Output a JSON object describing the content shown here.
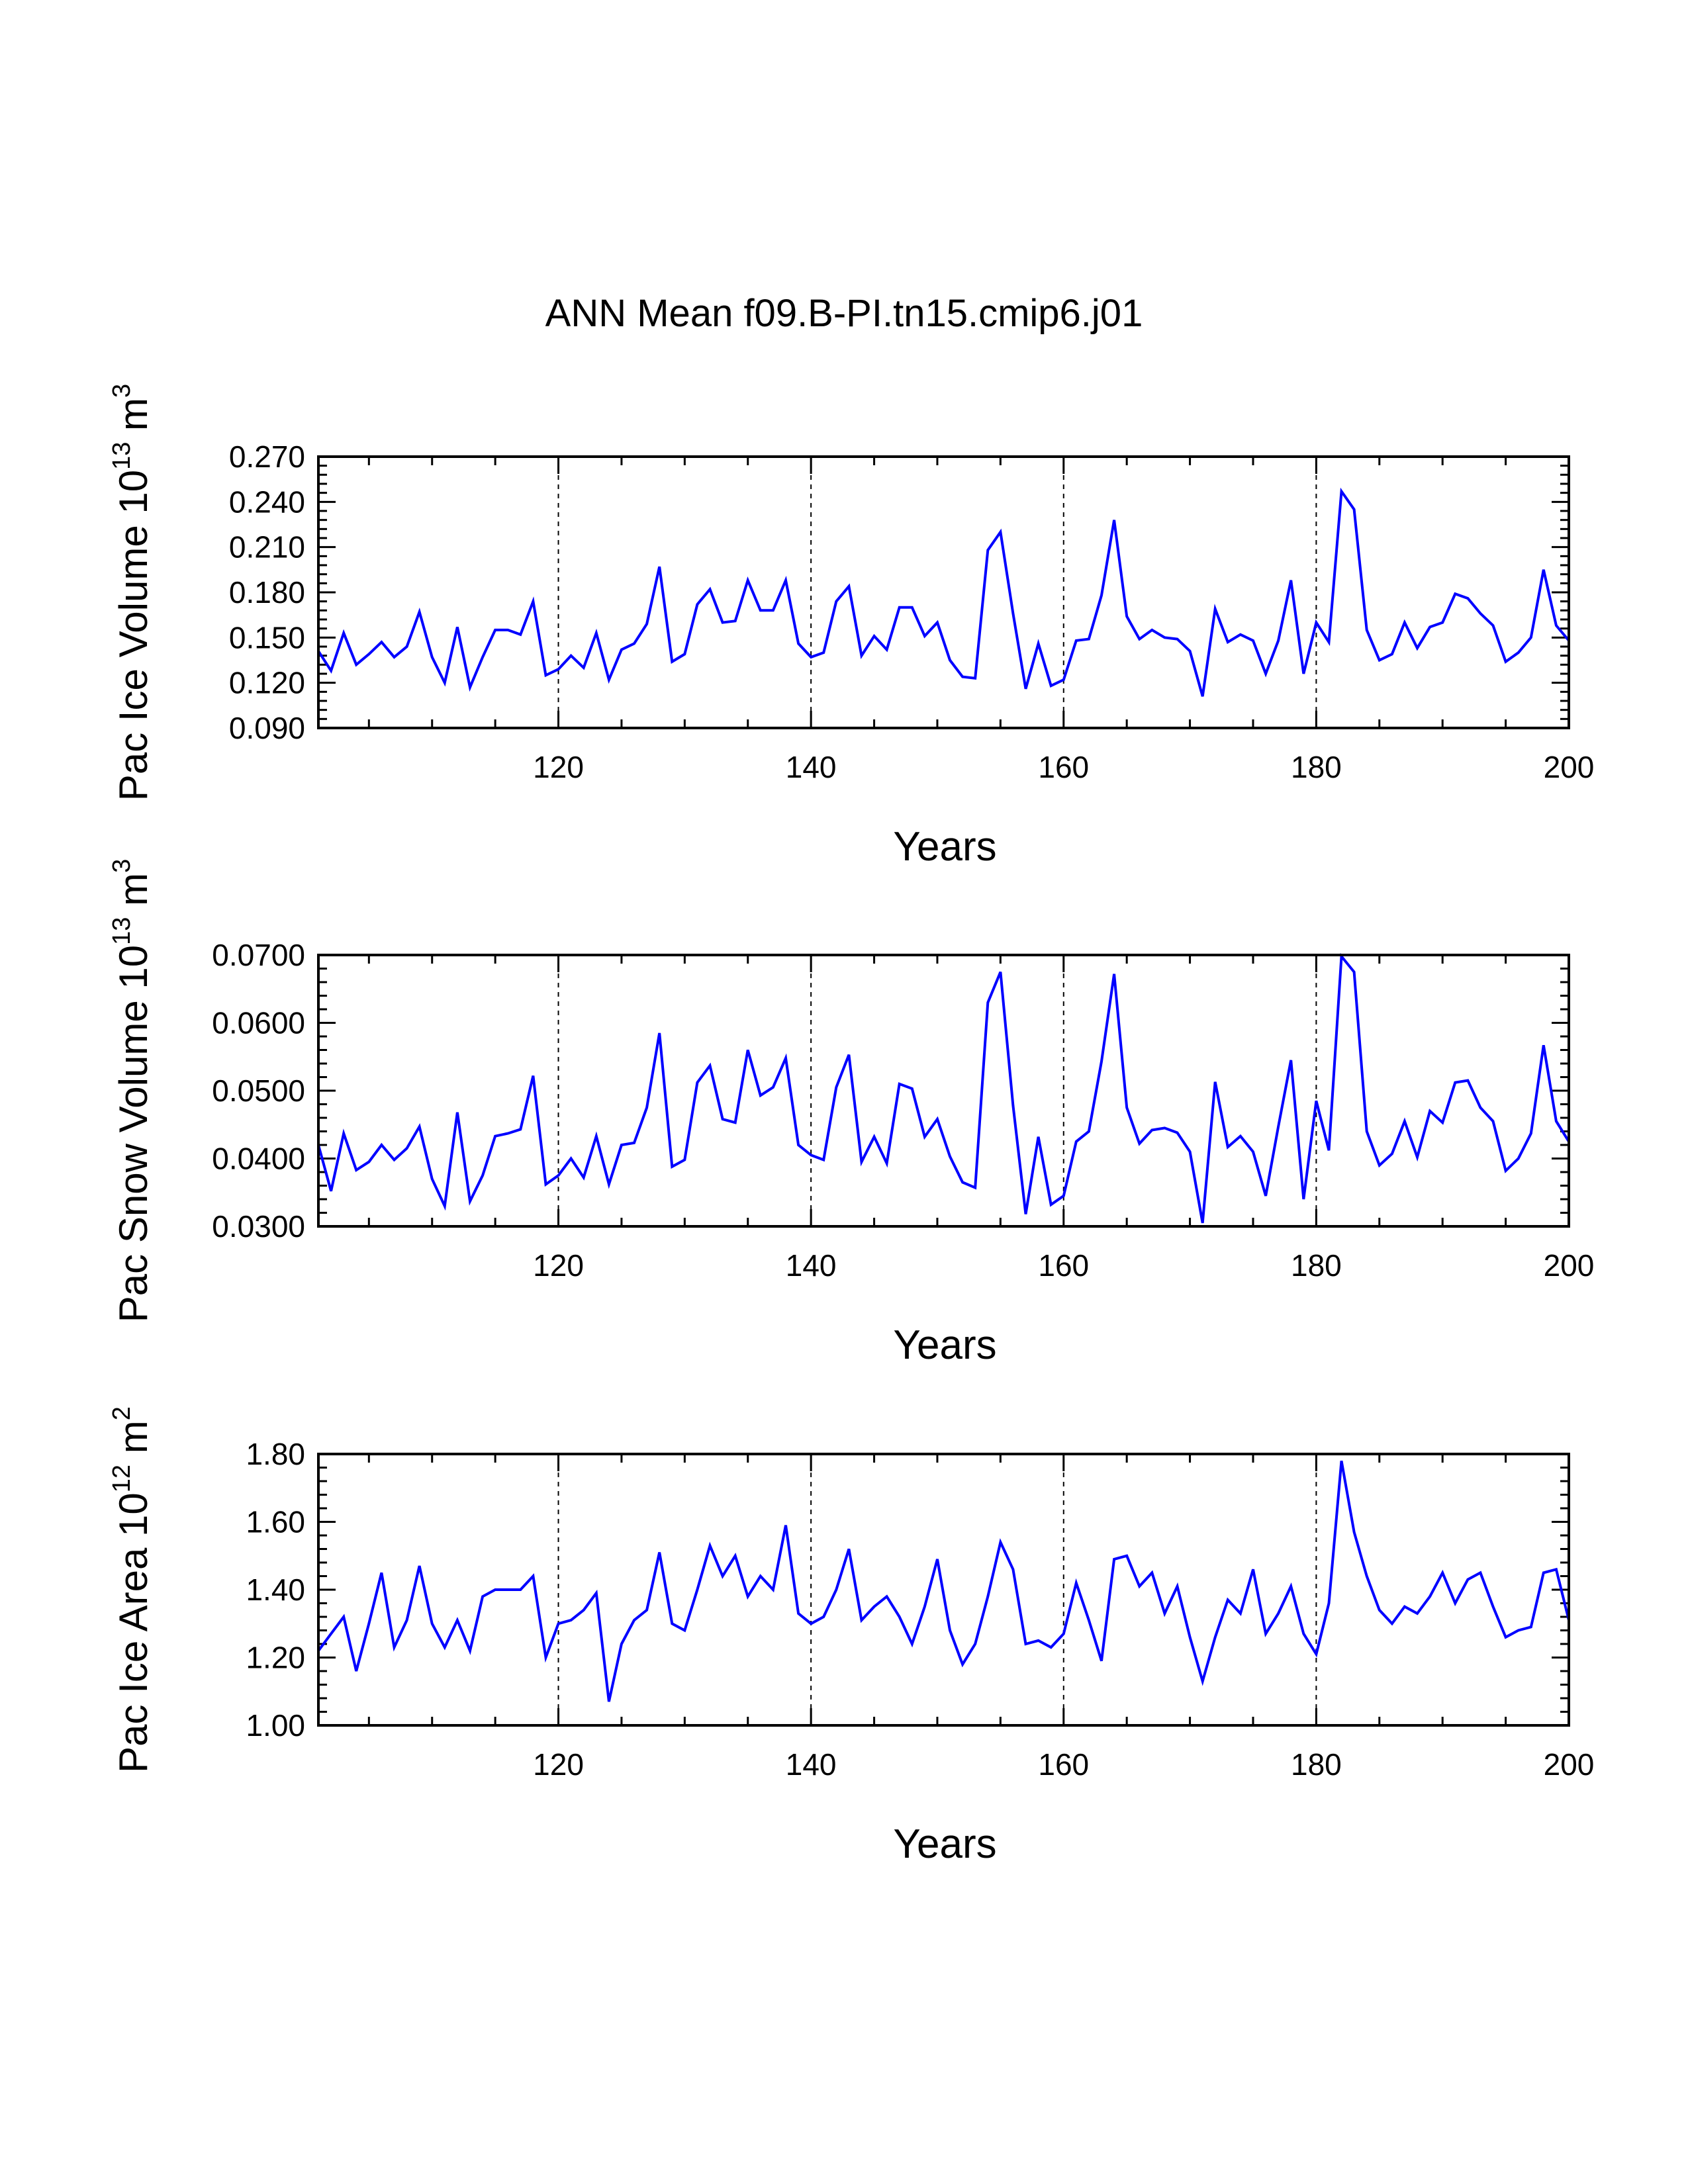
{
  "title": "ANN Mean f09.B-PI.tn15.cmip6.j01",
  "colors": {
    "series": "#0000ff",
    "axis": "#000000",
    "grid": "#000000"
  },
  "chart_data": [
    {
      "type": "line",
      "title": "ANN Mean f09.B-PI.tn15.cmip6.j01",
      "xlabel": "Years",
      "ylabel_main": "Pac Ice Volume 10",
      "ylabel_exp": "13",
      "ylabel_unit": "m",
      "ylabel_unit_exp": "3",
      "xlim": [
        101,
        200
      ],
      "ylim": [
        0.09,
        0.27
      ],
      "xticks": [
        120,
        140,
        160,
        180,
        200
      ],
      "yticks": [
        0.09,
        0.12,
        0.15,
        0.18,
        0.21,
        0.24,
        0.27
      ],
      "ytick_labels": [
        "0.090",
        "0.120",
        "0.150",
        "0.180",
        "0.210",
        "0.240",
        "0.270"
      ],
      "vlines": [
        120,
        140,
        160,
        180
      ],
      "x_start": 101,
      "values": [
        0.141,
        0.128,
        0.153,
        0.132,
        0.139,
        0.147,
        0.137,
        0.144,
        0.167,
        0.137,
        0.12,
        0.157,
        0.117,
        0.137,
        0.155,
        0.155,
        0.152,
        0.174,
        0.125,
        0.129,
        0.138,
        0.13,
        0.153,
        0.122,
        0.142,
        0.146,
        0.159,
        0.197,
        0.134,
        0.139,
        0.172,
        0.182,
        0.16,
        0.161,
        0.188,
        0.168,
        0.168,
        0.188,
        0.146,
        0.137,
        0.14,
        0.174,
        0.184,
        0.138,
        0.151,
        0.142,
        0.17,
        0.17,
        0.151,
        0.16,
        0.135,
        0.124,
        0.123,
        0.208,
        0.22,
        0.166,
        0.116,
        0.146,
        0.118,
        0.122,
        0.148,
        0.149,
        0.178,
        0.228,
        0.164,
        0.149,
        0.155,
        0.15,
        0.149,
        0.141,
        0.111,
        0.169,
        0.147,
        0.152,
        0.148,
        0.126,
        0.148,
        0.188,
        0.126,
        0.16,
        0.147,
        0.247,
        0.235,
        0.155,
        0.135,
        0.139,
        0.16,
        0.143,
        0.157,
        0.16,
        0.179,
        0.176,
        0.166,
        0.158,
        0.134,
        0.14,
        0.15,
        0.195,
        0.158,
        0.148
      ]
    },
    {
      "type": "line",
      "title": "",
      "xlabel": "Years",
      "ylabel_main": "Pac Snow Volume 10",
      "ylabel_exp": "13",
      "ylabel_unit": "m",
      "ylabel_unit_exp": "3",
      "xlim": [
        101,
        200
      ],
      "ylim": [
        0.03,
        0.07
      ],
      "xticks": [
        120,
        140,
        160,
        180,
        200
      ],
      "yticks": [
        0.03,
        0.04,
        0.05,
        0.06,
        0.07
      ],
      "ytick_labels": [
        "0.0300",
        "0.0400",
        "0.0500",
        "0.0600",
        "0.0700"
      ],
      "vlines": [
        120,
        140,
        160,
        180
      ],
      "x_start": 101,
      "values": [
        0.042,
        0.0352,
        0.0437,
        0.0383,
        0.0395,
        0.042,
        0.0398,
        0.0415,
        0.0447,
        0.037,
        0.033,
        0.0468,
        0.0337,
        0.0375,
        0.0433,
        0.0437,
        0.0443,
        0.0522,
        0.0362,
        0.0375,
        0.04,
        0.0372,
        0.0433,
        0.0362,
        0.042,
        0.0423,
        0.0475,
        0.0585,
        0.0388,
        0.0398,
        0.0512,
        0.0537,
        0.0458,
        0.0453,
        0.056,
        0.0493,
        0.0505,
        0.0548,
        0.042,
        0.0405,
        0.0398,
        0.0505,
        0.0553,
        0.0395,
        0.0432,
        0.0393,
        0.051,
        0.0503,
        0.0432,
        0.0458,
        0.0403,
        0.0365,
        0.0357,
        0.063,
        0.0675,
        0.0478,
        0.0318,
        0.0432,
        0.0332,
        0.0345,
        0.0425,
        0.044,
        0.0543,
        0.0672,
        0.0475,
        0.0422,
        0.0442,
        0.0445,
        0.0438,
        0.041,
        0.0305,
        0.0513,
        0.0417,
        0.0433,
        0.041,
        0.0345,
        0.0447,
        0.0545,
        0.034,
        0.0485,
        0.0412,
        0.0698,
        0.0675,
        0.044,
        0.039,
        0.0407,
        0.0455,
        0.0402,
        0.047,
        0.0453,
        0.0512,
        0.0515,
        0.0475,
        0.0455,
        0.0382,
        0.04,
        0.0437,
        0.0567,
        0.0455,
        0.0425
      ]
    },
    {
      "type": "line",
      "title": "",
      "xlabel": "Years",
      "ylabel_main": "Pac Ice Area 10",
      "ylabel_exp": "12",
      "ylabel_unit": "m",
      "ylabel_unit_exp": "2",
      "xlim": [
        101,
        200
      ],
      "ylim": [
        1.0,
        1.8
      ],
      "xticks": [
        120,
        140,
        160,
        180,
        200
      ],
      "yticks": [
        1.0,
        1.2,
        1.4,
        1.6,
        1.8
      ],
      "ytick_labels": [
        "1.00",
        "1.20",
        "1.40",
        "1.60",
        "1.80"
      ],
      "vlines": [
        120,
        140,
        160,
        180
      ],
      "x_start": 101,
      "values": [
        1.22,
        1.27,
        1.32,
        1.16,
        1.3,
        1.45,
        1.23,
        1.31,
        1.47,
        1.3,
        1.23,
        1.31,
        1.22,
        1.38,
        1.4,
        1.4,
        1.4,
        1.44,
        1.2,
        1.3,
        1.31,
        1.34,
        1.39,
        1.07,
        1.24,
        1.31,
        1.34,
        1.51,
        1.3,
        1.28,
        1.4,
        1.53,
        1.44,
        1.5,
        1.38,
        1.44,
        1.4,
        1.59,
        1.33,
        1.3,
        1.32,
        1.4,
        1.52,
        1.31,
        1.35,
        1.38,
        1.32,
        1.24,
        1.35,
        1.49,
        1.28,
        1.18,
        1.24,
        1.38,
        1.54,
        1.46,
        1.24,
        1.25,
        1.23,
        1.27,
        1.42,
        1.31,
        1.19,
        1.49,
        1.5,
        1.41,
        1.45,
        1.33,
        1.41,
        1.26,
        1.13,
        1.26,
        1.37,
        1.33,
        1.46,
        1.27,
        1.33,
        1.41,
        1.27,
        1.21,
        1.36,
        1.78,
        1.57,
        1.44,
        1.34,
        1.3,
        1.35,
        1.33,
        1.38,
        1.45,
        1.36,
        1.43,
        1.45,
        1.35,
        1.26,
        1.28,
        1.29,
        1.45,
        1.46,
        1.31
      ]
    }
  ]
}
